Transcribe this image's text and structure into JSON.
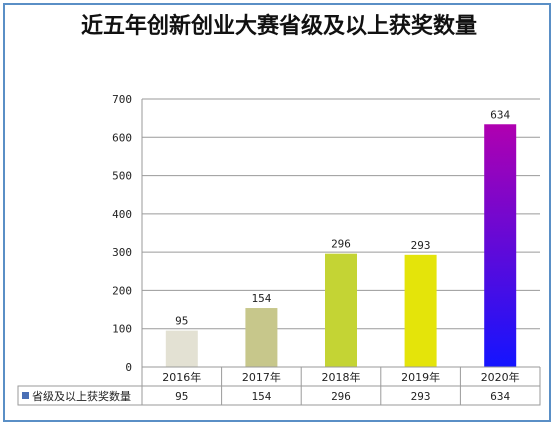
{
  "chart_data": {
    "type": "bar",
    "title": "近五年创新创业大赛省级及以上获奖数量",
    "categories": [
      "2016年",
      "2017年",
      "2018年",
      "2019年",
      "2020年"
    ],
    "series": [
      {
        "name": "省级及以上获奖数量",
        "values": [
          95,
          154,
          296,
          293,
          634
        ]
      }
    ],
    "ylim": [
      0,
      700
    ],
    "yticks": [
      0,
      100,
      200,
      300,
      400,
      500,
      600,
      700
    ],
    "grid": true,
    "legend": "data-table-left",
    "bar_colors": [
      "#e3e1d3",
      "#c7c78b",
      "#c4d434",
      "#e4e40a",
      "gradient-purple-blue"
    ],
    "gradient_top": "#b000b0",
    "gradient_bottom": "#1414ff",
    "legend_key_color": "#4a6fb5"
  }
}
